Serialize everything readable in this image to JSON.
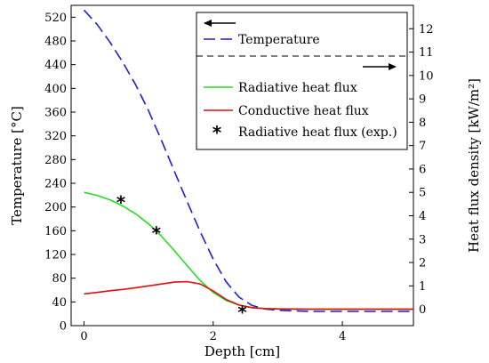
{
  "chart_data": {
    "type": "line",
    "xlabel": "Depth [cm]",
    "ylabel_left": "Temperature [°C]",
    "ylabel_right": "Heat flux density [kW/m²]",
    "xlim": [
      -0.2,
      5.1
    ],
    "ylim_left": [
      0,
      540
    ],
    "ylim_right": [
      -0.7,
      13.0
    ],
    "x_ticks": [
      0,
      2,
      4
    ],
    "y_left_ticks": [
      0,
      40,
      80,
      120,
      160,
      200,
      240,
      280,
      320,
      360,
      400,
      440,
      480,
      520
    ],
    "y_right_ticks": [
      0,
      1,
      2,
      3,
      4,
      5,
      6,
      7,
      8,
      9,
      10,
      11,
      12
    ],
    "grid": false,
    "legend_placement": "top-right",
    "series": [
      {
        "name": "Temperature",
        "axis": "left",
        "color": "#1f1fd6",
        "style": "dashed",
        "x": [
          0.0,
          0.2,
          0.4,
          0.6,
          0.8,
          1.0,
          1.2,
          1.4,
          1.6,
          1.8,
          2.0,
          2.2,
          2.4,
          2.6,
          2.8,
          3.0,
          3.2,
          3.5,
          4.0,
          4.5,
          5.1
        ],
        "y": [
          532,
          508,
          478,
          444,
          406,
          362,
          312,
          260,
          208,
          158,
          112,
          74,
          48,
          34,
          28,
          26,
          25,
          24,
          24,
          24,
          24
        ]
      },
      {
        "name": "Radiative heat flux",
        "axis": "right",
        "color": "#22dd22",
        "style": "solid",
        "x": [
          0.0,
          0.2,
          0.4,
          0.6,
          0.8,
          1.0,
          1.2,
          1.4,
          1.6,
          1.8,
          2.0,
          2.2,
          2.4,
          2.6,
          2.8,
          3.0,
          3.5,
          4.0,
          4.5,
          5.1
        ],
        "y": [
          5.0,
          4.87,
          4.68,
          4.42,
          4.08,
          3.65,
          3.12,
          2.5,
          1.85,
          1.22,
          0.72,
          0.38,
          0.18,
          0.07,
          0.03,
          0.02,
          0.01,
          0.01,
          0.01,
          0.01
        ]
      },
      {
        "name": "Conductive heat flux",
        "axis": "right",
        "color": "#dd1111",
        "style": "solid",
        "x": [
          0.0,
          0.2,
          0.4,
          0.6,
          0.8,
          1.0,
          1.2,
          1.4,
          1.6,
          1.8,
          2.0,
          2.2,
          2.4,
          2.6,
          2.8,
          3.0,
          3.5,
          4.0,
          4.5,
          5.1
        ],
        "y": [
          0.66,
          0.72,
          0.79,
          0.85,
          0.92,
          1.0,
          1.08,
          1.16,
          1.18,
          1.08,
          0.78,
          0.42,
          0.18,
          0.07,
          0.03,
          0.01,
          0.0,
          0.0,
          0.0,
          0.0
        ]
      },
      {
        "name": "Radiative heat flux (exp.)",
        "axis": "right",
        "color": "#000000",
        "style": "markers",
        "marker": "*",
        "x": [
          0.57,
          1.12,
          2.45
        ],
        "y": [
          4.6,
          3.3,
          -0.1
        ]
      }
    ]
  }
}
